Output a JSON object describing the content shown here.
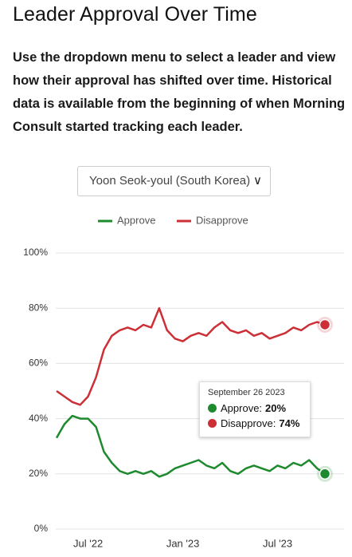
{
  "title": "Leader Approval Over Time",
  "description": "Use the dropdown menu to select a leader and view how their approval has shifted over time. Historical data is available from the beginning of when Morning Consult started tracking each leader.",
  "dropdown": {
    "selected": "Yoon Seok-youl (South Korea)"
  },
  "chart_data": {
    "type": "line",
    "categories": [
      null,
      null,
      null,
      null,
      "Jul '22",
      null,
      null,
      null,
      null,
      null,
      null,
      null,
      null,
      null,
      null,
      null,
      "Jan '23",
      null,
      null,
      null,
      null,
      null,
      null,
      null,
      null,
      null,
      null,
      null,
      "Jul '23",
      null,
      null,
      null,
      null,
      null,
      null
    ],
    "series": [
      {
        "name": "Approve",
        "color": "#1e8a2e",
        "values": [
          33,
          38,
          41,
          40,
          40,
          37,
          28,
          24,
          21,
          20,
          21,
          20,
          21,
          19,
          20,
          22,
          23,
          24,
          25,
          23,
          22,
          24,
          21,
          20,
          22,
          23,
          22,
          21,
          23,
          22,
          24,
          23,
          25,
          22,
          20
        ]
      },
      {
        "name": "Disapprove",
        "color": "#cc2f36",
        "values": [
          50,
          48,
          46,
          45,
          48,
          55,
          65,
          70,
          72,
          73,
          72,
          74,
          73,
          80,
          72,
          69,
          68,
          70,
          71,
          70,
          73,
          75,
          72,
          71,
          72,
          70,
          71,
          69,
          70,
          71,
          73,
          72,
          74,
          75,
          74
        ]
      }
    ],
    "ylim": [
      0,
      100
    ],
    "yticks": [
      {
        "value": 0,
        "label": "0%"
      },
      {
        "value": 20,
        "label": "20%"
      },
      {
        "value": 40,
        "label": "40%"
      },
      {
        "value": 60,
        "label": "60%"
      },
      {
        "value": 80,
        "label": "80%"
      },
      {
        "value": 100,
        "label": "100%"
      }
    ],
    "grid": true,
    "legend": "top",
    "tooltip": {
      "title": "September 26 2023",
      "rows": [
        {
          "label": "Approve:",
          "value": "20%"
        },
        {
          "label": "Disapprove:",
          "value": "74%"
        }
      ]
    }
  }
}
